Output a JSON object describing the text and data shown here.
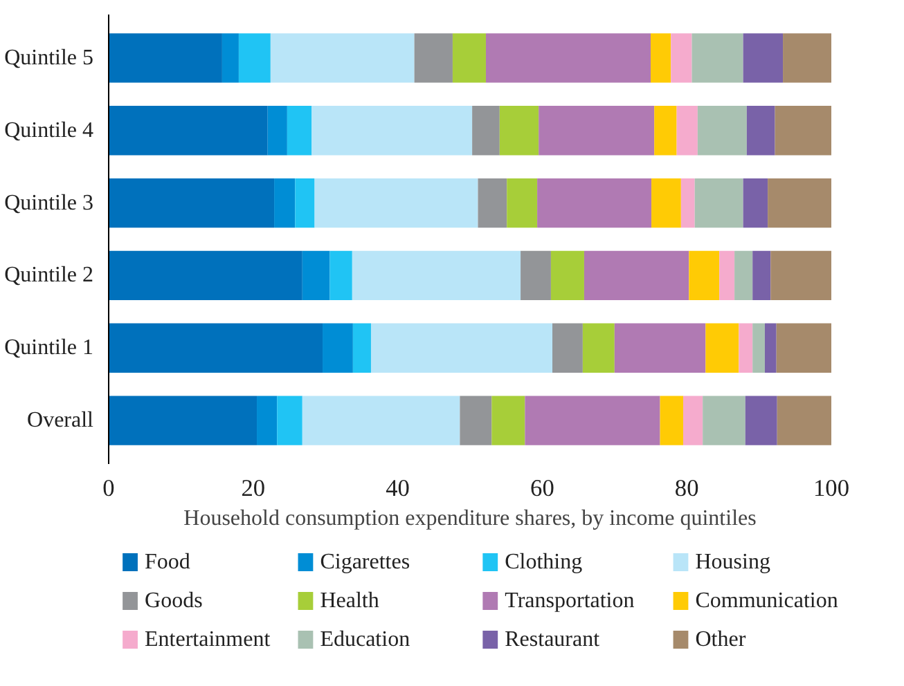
{
  "chart_data": {
    "type": "bar",
    "orientation": "horizontal",
    "stacked": true,
    "xlabel": "Household consumption expenditure shares, by income quintiles",
    "categories": [
      "Quintile 5",
      "Quintile 4",
      "Quintile 3",
      "Quintile 2",
      "Quintile 1",
      "Overall"
    ],
    "xlim": [
      0,
      100
    ],
    "xticks": [
      0,
      20,
      40,
      60,
      80,
      100
    ],
    "grid": false,
    "legend": "bottom",
    "series": [
      {
        "name": "Food",
        "color": "#0071bc",
        "values": [
          15.7,
          22.0,
          22.9,
          26.8,
          29.6,
          20.5
        ]
      },
      {
        "name": "Cigarettes",
        "color": "#008dd5",
        "values": [
          2.3,
          2.7,
          2.9,
          3.8,
          4.2,
          2.8
        ]
      },
      {
        "name": "Clothing",
        "color": "#20c4f4",
        "values": [
          4.4,
          3.4,
          2.7,
          3.1,
          2.5,
          3.5
        ]
      },
      {
        "name": "Housing",
        "color": "#b9e5f8",
        "values": [
          19.9,
          22.2,
          22.6,
          23.3,
          25.1,
          21.8
        ]
      },
      {
        "name": "Goods",
        "color": "#939598",
        "values": [
          5.3,
          3.8,
          4.0,
          4.2,
          4.2,
          4.4
        ]
      },
      {
        "name": "Health",
        "color": "#a7ce39",
        "values": [
          4.6,
          5.4,
          4.2,
          4.6,
          4.4,
          4.6
        ]
      },
      {
        "name": "Transportation",
        "color": "#b07ab3",
        "values": [
          22.8,
          16.0,
          15.8,
          14.5,
          12.6,
          18.7
        ]
      },
      {
        "name": "Communication",
        "color": "#ffcb05",
        "values": [
          2.8,
          3.1,
          4.1,
          4.2,
          4.6,
          3.2
        ]
      },
      {
        "name": "Entertainment",
        "color": "#f5abcd",
        "values": [
          2.9,
          2.9,
          1.9,
          2.1,
          1.9,
          2.7
        ]
      },
      {
        "name": "Education",
        "color": "#a9c1b2",
        "values": [
          7.1,
          6.8,
          6.7,
          2.5,
          1.7,
          5.9
        ]
      },
      {
        "name": "Restaurant",
        "color": "#7962a8",
        "values": [
          5.5,
          3.9,
          3.4,
          2.5,
          1.6,
          4.4
        ]
      },
      {
        "name": "Other",
        "color": "#a68a6b",
        "values": [
          6.7,
          7.8,
          8.8,
          8.4,
          7.6,
          7.5
        ]
      }
    ]
  }
}
